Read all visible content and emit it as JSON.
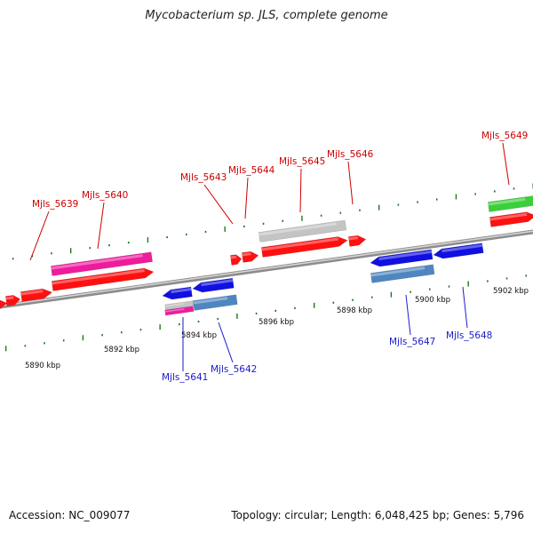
{
  "title": "Mycobacterium sp. JLS, complete genome",
  "accession": "Accession: NC_009077",
  "summary": "Topology: circular; Length: 6,048,425 bp; Genes: 5,796",
  "colors": {
    "backbone": "#8c8c8c",
    "tick": "#1a7a1a",
    "red": "#ff1010",
    "blue": "#1010e0",
    "pink": "#ee1c9c",
    "gray": "#c4c4c4",
    "steel": "#4f86c0",
    "green": "#3bcf3b",
    "label_top": "#cc0000",
    "label_bottom": "#1a1acc"
  },
  "scale": {
    "kbp_labels": [
      "5890 kbp",
      "5892 kbp",
      "5894 kbp",
      "5896 kbp",
      "5898 kbp",
      "5900 kbp",
      "5902 kbp"
    ]
  },
  "genes": [
    {
      "name": "Mjls_5639"
    },
    {
      "name": "Mjls_5640"
    },
    {
      "name": "Mjls_5641"
    },
    {
      "name": "Mjls_5642"
    },
    {
      "name": "Mjls_5643"
    },
    {
      "name": "Mjls_5644"
    },
    {
      "name": "Mjls_5645"
    },
    {
      "name": "Mjls_5646"
    },
    {
      "name": "Mjls_5647"
    },
    {
      "name": "Mjls_5648"
    },
    {
      "name": "Mjls_5649"
    }
  ]
}
